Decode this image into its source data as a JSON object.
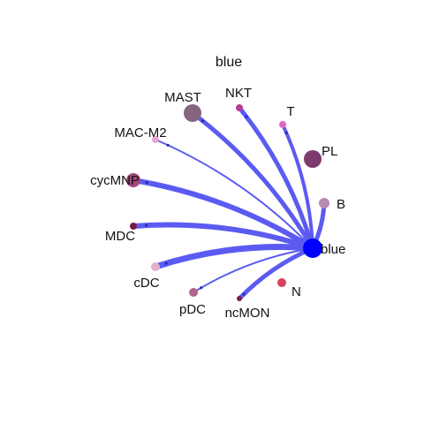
{
  "title": "blue",
  "hub": {
    "label": "blue",
    "color": "#0000ff"
  },
  "edge_color": "#5b5bf2",
  "nodes": [
    {
      "label": "MAST",
      "color": "#856580",
      "weight": 5,
      "edge": true
    },
    {
      "label": "NKT",
      "color": "#b43f95",
      "weight": 5,
      "edge": true
    },
    {
      "label": "T",
      "color": "#e06ac2",
      "weight": 4,
      "edge": true
    },
    {
      "label": "PL",
      "color": "#7c3b6e",
      "weight": 0,
      "edge": false
    },
    {
      "label": "B",
      "color": "#b98ab2",
      "weight": 5,
      "edge": true
    },
    {
      "label": "N",
      "color": "#d5435c",
      "weight": 0,
      "edge": false
    },
    {
      "label": "ncMON",
      "color": "#7b2049",
      "weight": 5,
      "edge": true
    },
    {
      "label": "pDC",
      "color": "#b2638f",
      "weight": 2,
      "edge": true
    },
    {
      "label": "cDC",
      "color": "#e3b2cb",
      "weight": 7,
      "edge": true
    },
    {
      "label": "MDC",
      "color": "#7a1a4a",
      "weight": 6,
      "edge": true
    },
    {
      "label": "cycMNP",
      "color": "#a24880",
      "weight": 6,
      "edge": true
    },
    {
      "label": "MAC-M2",
      "color": "#e5a5d0",
      "weight": 2,
      "edge": true
    }
  ]
}
